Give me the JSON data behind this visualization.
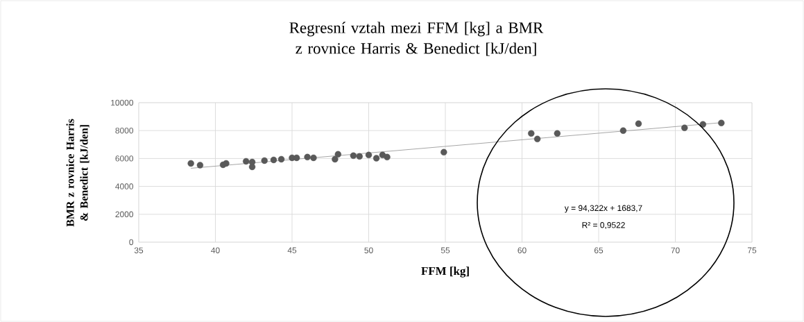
{
  "chart_data": {
    "type": "scatter",
    "title": "Regresní vztah mezi FFM [kg] a BMR z rovnice Harris & Benedict [kJ/den]",
    "xlabel": "FFM [kg]",
    "ylabel": "BMR z rovnice Harris & Benedict [kJ/den]",
    "xlim": [
      35,
      75
    ],
    "xticks": [
      35,
      40,
      45,
      50,
      55,
      60,
      65,
      70,
      75
    ],
    "ylim": [
      0,
      10000
    ],
    "yticks": [
      0,
      2000,
      4000,
      6000,
      8000,
      10000
    ],
    "grid": true,
    "series": [
      {
        "color": "#595959",
        "marker": "circle",
        "x": [
          38.4,
          39.0,
          40.5,
          40.7,
          42.0,
          42.4,
          42.4,
          43.2,
          43.8,
          44.3,
          45.0,
          45.3,
          46.0,
          46.4,
          47.8,
          48.0,
          49.0,
          49.4,
          50.0,
          50.5,
          50.9,
          51.2,
          54.9,
          60.6,
          61.0,
          62.3,
          66.6,
          67.6,
          70.6,
          71.8,
          73.0
        ],
        "values": [
          5650,
          5520,
          5550,
          5650,
          5800,
          5750,
          5400,
          5850,
          5900,
          5950,
          6050,
          6050,
          6100,
          6050,
          5950,
          6300,
          6200,
          6150,
          6250,
          6020,
          6250,
          6100,
          6450,
          7800,
          7400,
          7800,
          8000,
          8500,
          8200,
          8450,
          8550
        ]
      },
      {
        "type": "line",
        "color": "#a6a6a6",
        "marker": "none",
        "x": [
          38.4,
          73.0
        ],
        "values": [
          5300,
          8570
        ]
      }
    ],
    "annotations": [
      "y = 94,322x + 1683,7",
      "R² = 0,9522"
    ]
  }
}
